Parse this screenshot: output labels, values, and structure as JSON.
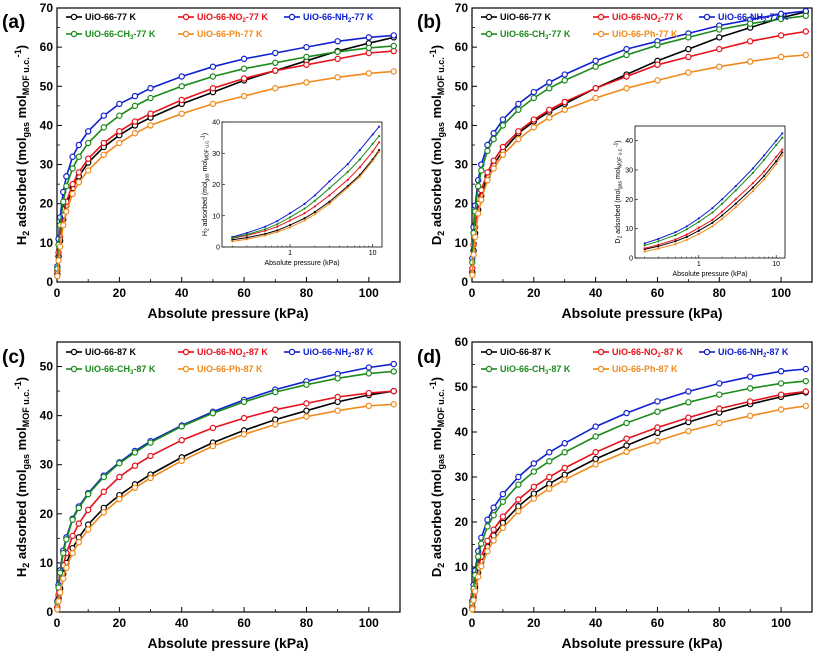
{
  "figure": {
    "colors": {
      "UiO-66": "#000000",
      "UiO-66-NO2": "#e8101a",
      "UiO-66-NH2": "#1020d0",
      "UiO-66-CH3": "#1a8a1a",
      "UiO-66-Ph": "#f08a1a"
    }
  },
  "chart_data": [
    {
      "type": "line",
      "panel_label": "(a)",
      "xlabel": "Absolute pressure (kPa)",
      "ylabel": {
        "prefix": "H",
        "sub1": "2",
        "mid": " adsorbed (mol",
        "sub2": "gas",
        "mid2": " mol",
        "sub3": "MOF u.c.",
        "sup": "-1",
        "suffix": ")"
      },
      "xlim": [
        0,
        110
      ],
      "ylim": [
        0,
        70
      ],
      "xticks": [
        "0",
        "20",
        "40",
        "60",
        "80",
        "100"
      ],
      "yticks": [
        "0",
        "10",
        "20",
        "30",
        "40",
        "50",
        "60",
        "70"
      ],
      "x": [
        0.1,
        0.5,
        1,
        2,
        3,
        5,
        7,
        10,
        15,
        20,
        25,
        30,
        40,
        50,
        60,
        70,
        80,
        90,
        100,
        108
      ],
      "series": [
        {
          "name": "UiO-66-77 K",
          "base": "UiO-66",
          "temp": "-77 K",
          "values": [
            2.0,
            6.5,
            10.5,
            16.0,
            19.5,
            24.0,
            27.0,
            30.5,
            34.5,
            37.5,
            40.0,
            42.0,
            45.5,
            48.5,
            51.5,
            54.0,
            56.5,
            59.0,
            61.0,
            62.5
          ]
        },
        {
          "name": "UiO-66-NO2-77 K",
          "base": "UiO-66-NO",
          "sub": "2",
          "temp": "-77 K",
          "values": [
            2.8,
            7.5,
            11.5,
            17.0,
            20.5,
            25.0,
            28.0,
            31.5,
            35.5,
            38.5,
            41.0,
            43.0,
            46.5,
            49.5,
            52.0,
            54.0,
            55.5,
            57.0,
            58.5,
            59.0
          ]
        },
        {
          "name": "UiO-66-NH2-77 K",
          "base": "UiO-66-NH",
          "sub": "2",
          "temp": "-77 K",
          "values": [
            4.0,
            11.0,
            16.5,
            23.0,
            27.0,
            32.0,
            35.0,
            38.5,
            42.5,
            45.5,
            47.5,
            49.5,
            52.5,
            55.0,
            57.0,
            58.5,
            60.0,
            61.5,
            62.5,
            63.0
          ]
        },
        {
          "name": "UiO-66-CH3-77 K",
          "base": "UiO-66-CH",
          "sub": "3",
          "temp": "-77 K",
          "values": [
            3.4,
            9.5,
            14.5,
            20.5,
            24.5,
            29.0,
            32.0,
            35.5,
            39.5,
            42.5,
            45.0,
            47.0,
            50.0,
            52.5,
            54.5,
            56.0,
            57.5,
            58.8,
            59.8,
            60.3
          ]
        },
        {
          "name": "UiO-66-Ph-77 K",
          "base": "UiO-66-Ph",
          "temp": "-77 K",
          "values": [
            1.5,
            5.5,
            9.0,
            14.5,
            18.0,
            22.5,
            25.5,
            28.5,
            32.5,
            35.5,
            38.0,
            40.0,
            43.0,
            45.5,
            47.5,
            49.5,
            51.0,
            52.3,
            53.3,
            53.8
          ]
        }
      ],
      "inset": {
        "xlabel": "Absolute pressure (kPa)",
        "ylabel": "H2 adsorbed (molgas molMOF u.c.-1)",
        "ylabel_parts": {
          "prefix": "H",
          "sub1": "2",
          "mid": " adsorbed (mol",
          "sub2": "gas",
          "mid2": " mol",
          "sub3": "MOF u.c.",
          "sup": "-1",
          "suffix": ")"
        },
        "xscale": "log",
        "xlim": [
          0.15,
          13
        ],
        "ylim": [
          0,
          40
        ],
        "xticks": [
          {
            "value": 1,
            "label": "1"
          },
          {
            "value": 10,
            "label": "10"
          }
        ],
        "yticks": [
          "0",
          "10",
          "20",
          "30",
          "40"
        ],
        "x": [
          0.2,
          0.3,
          0.5,
          0.7,
          1,
          1.5,
          2,
          3,
          5,
          7,
          10,
          12
        ],
        "series": [
          {
            "name": "UiO-66-77 K",
            "values": [
              2.3,
              3.0,
              4.2,
              5.3,
              7.0,
              9.2,
              11.2,
              14.5,
              19.5,
              23.0,
              28.0,
              31.0
            ]
          },
          {
            "name": "UiO-66-NO2-77 K",
            "values": [
              2.8,
              3.7,
              5.2,
              6.5,
              8.5,
              10.8,
              13.0,
              16.5,
              21.5,
              25.5,
              30.5,
              33.5
            ]
          },
          {
            "name": "UiO-66-NH2-77 K",
            "values": [
              3.2,
              4.5,
              6.5,
              8.3,
              10.8,
              13.8,
              16.5,
              21.0,
              26.5,
              31.0,
              36.0,
              38.5
            ]
          },
          {
            "name": "UiO-66-CH3-77 K",
            "values": [
              2.9,
              4.0,
              5.7,
              7.3,
              9.5,
              12.3,
              14.8,
              18.8,
              24.0,
              28.0,
              33.0,
              35.5
            ]
          },
          {
            "name": "UiO-66-Ph-77 K",
            "values": [
              1.8,
              2.5,
              3.7,
              4.8,
              6.3,
              8.5,
              10.5,
              13.8,
              19.0,
              22.5,
              27.5,
              30.5
            ]
          }
        ]
      }
    },
    {
      "type": "line",
      "panel_label": "(b)",
      "xlabel": "Absolute pressure (kPa)",
      "ylabel": {
        "prefix": "D",
        "sub1": "2",
        "mid": " adsorbed (mol",
        "sub2": "gas",
        "mid2": " mol",
        "sub3": "MOF u.c.",
        "sup": "-1",
        "suffix": ")"
      },
      "xlim": [
        0,
        110
      ],
      "ylim": [
        0,
        70
      ],
      "xticks": [
        "0",
        "20",
        "40",
        "60",
        "80",
        "100"
      ],
      "yticks": [
        "0",
        "10",
        "20",
        "30",
        "40",
        "50",
        "60",
        "70"
      ],
      "x": [
        0.1,
        0.5,
        1,
        2,
        3,
        5,
        7,
        10,
        15,
        20,
        25,
        30,
        40,
        50,
        60,
        70,
        80,
        90,
        100,
        108
      ],
      "series": [
        {
          "name": "UiO-66-77 K",
          "base": "UiO-66",
          "temp": "-77 K",
          "values": [
            2.5,
            8.0,
            12.5,
            18.5,
            22.0,
            27.0,
            30.0,
            33.5,
            38.0,
            41.0,
            43.5,
            45.5,
            49.5,
            53.0,
            56.5,
            59.5,
            62.5,
            65.0,
            67.5,
            69.0
          ]
        },
        {
          "name": "UiO-66-NO2-77 K",
          "base": "UiO-66-NO",
          "sub": "2",
          "temp": "-77 K",
          "values": [
            3.5,
            9.5,
            14.0,
            20.0,
            23.5,
            28.0,
            31.0,
            34.5,
            38.5,
            41.5,
            44.0,
            46.0,
            49.5,
            52.5,
            55.5,
            57.5,
            59.5,
            61.5,
            63.0,
            64.0
          ]
        },
        {
          "name": "UiO-66-NH2-77 K",
          "base": "UiO-66-NH",
          "sub": "2",
          "temp": "-77 K",
          "values": [
            6.0,
            14.0,
            19.5,
            26.0,
            30.0,
            35.0,
            38.0,
            41.5,
            45.5,
            48.5,
            51.0,
            53.0,
            56.5,
            59.5,
            61.5,
            63.5,
            65.5,
            67.0,
            68.5,
            69.2
          ]
        },
        {
          "name": "UiO-66-CH3-77 K",
          "base": "UiO-66-CH",
          "sub": "3",
          "temp": "-77 K",
          "values": [
            5.0,
            12.5,
            18.0,
            24.5,
            28.5,
            33.5,
            36.5,
            40.0,
            44.0,
            47.0,
            49.5,
            51.5,
            55.0,
            58.0,
            60.5,
            62.5,
            64.5,
            66.0,
            67.2,
            68.0
          ]
        },
        {
          "name": "UiO-66-Ph-77 K",
          "base": "UiO-66-Ph",
          "temp": "-77 K",
          "values": [
            1.8,
            7.0,
            11.5,
            17.5,
            21.0,
            26.0,
            29.0,
            32.5,
            36.5,
            39.5,
            42.0,
            44.0,
            47.0,
            49.5,
            51.5,
            53.5,
            55.0,
            56.3,
            57.5,
            58.0
          ]
        }
      ],
      "inset": {
        "xlabel": "Absolute pressure (kPa)",
        "ylabel": "D2 adsorbed (molgas molMOF u.c.-1)",
        "ylabel_parts": {
          "prefix": "D",
          "sub1": "2",
          "mid": " adsorbed (mol",
          "sub2": "gas",
          "mid2": " mol",
          "sub3": "MOF u.c.",
          "sup": "-1",
          "suffix": ")"
        },
        "xscale": "log",
        "xlim": [
          0.15,
          13
        ],
        "ylim": [
          0,
          45
        ],
        "xticks": [
          {
            "value": 1,
            "label": "1"
          },
          {
            "value": 10,
            "label": "10"
          }
        ],
        "yticks": [
          "0",
          "10",
          "20",
          "30",
          "40"
        ],
        "x": [
          0.2,
          0.3,
          0.5,
          0.7,
          1,
          1.5,
          2,
          3,
          5,
          7,
          10,
          12
        ],
        "series": [
          {
            "name": "UiO-66-77 K",
            "values": [
              3.0,
              4.0,
              5.7,
              7.2,
              9.3,
              12.0,
              14.5,
              18.5,
              24.0,
              28.0,
              33.0,
              36.0
            ]
          },
          {
            "name": "UiO-66-NO2-77 K",
            "values": [
              3.3,
              4.5,
              6.3,
              8.0,
              10.3,
              13.0,
              15.8,
              20.0,
              25.5,
              29.5,
              34.5,
              37.0
            ]
          },
          {
            "name": "UiO-66-NH2-77 K",
            "values": [
              5.0,
              6.5,
              8.8,
              10.8,
              13.5,
              17.0,
              20.0,
              24.5,
              30.5,
              35.0,
              40.0,
              42.5
            ]
          },
          {
            "name": "UiO-66-CH3-77 K",
            "values": [
              4.3,
              5.7,
              7.8,
              9.8,
              12.3,
              15.5,
              18.5,
              23.0,
              29.0,
              33.5,
              38.5,
              41.0
            ]
          },
          {
            "name": "UiO-66-Ph-77 K",
            "values": [
              2.2,
              3.2,
              4.7,
              6.2,
              8.2,
              10.8,
              13.3,
              17.3,
              22.8,
              26.8,
              32.0,
              35.0
            ]
          }
        ]
      }
    },
    {
      "type": "line",
      "panel_label": "(c)",
      "xlabel": "Absolute pressure (kPa)",
      "ylabel": {
        "prefix": "H",
        "sub1": "2",
        "mid": " adsorbed (mol",
        "sub2": "gas",
        "mid2": " mol",
        "sub3": "MOF u.c.",
        "sup": "-1",
        "suffix": ")"
      },
      "xlim": [
        0,
        110
      ],
      "ylim": [
        0,
        55
      ],
      "xticks": [
        "0",
        "20",
        "40",
        "60",
        "80",
        "100"
      ],
      "yticks": [
        "0",
        "10",
        "20",
        "30",
        "40",
        "50"
      ],
      "x": [
        0.1,
        0.5,
        1,
        2,
        3,
        5,
        7,
        10,
        15,
        20,
        25,
        30,
        40,
        50,
        60,
        70,
        80,
        90,
        100,
        108
      ],
      "series": [
        {
          "name": "UiO-66-87 K",
          "base": "UiO-66",
          "temp": "-87 K",
          "values": [
            0.8,
            2.8,
            4.8,
            7.8,
            10.0,
            13.0,
            15.2,
            17.8,
            21.2,
            23.8,
            26.0,
            28.0,
            31.5,
            34.5,
            37.0,
            39.2,
            41.0,
            42.8,
            44.2,
            45.0
          ]
        },
        {
          "name": "UiO-66-NO2-87 K",
          "base": "UiO-66-NO",
          "sub": "2",
          "temp": "-87 K",
          "values": [
            1.0,
            3.5,
            6.0,
            9.5,
            12.0,
            15.5,
            18.0,
            20.8,
            24.5,
            27.5,
            29.8,
            31.8,
            35.0,
            37.5,
            39.5,
            41.2,
            42.5,
            43.8,
            44.6,
            45.0
          ]
        },
        {
          "name": "UiO-66-NH2-87 K",
          "base": "UiO-66-NH",
          "sub": "2",
          "temp": "-87 K",
          "values": [
            2.2,
            5.5,
            8.5,
            12.5,
            15.2,
            19.0,
            21.5,
            24.2,
            27.8,
            30.5,
            32.8,
            34.8,
            38.0,
            40.8,
            43.2,
            45.3,
            47.0,
            48.5,
            49.8,
            50.5
          ]
        },
        {
          "name": "UiO-66-CH3-87 K",
          "base": "UiO-66-CH",
          "sub": "3",
          "temp": "-87 K",
          "values": [
            2.0,
            5.0,
            8.0,
            12.0,
            14.8,
            18.8,
            21.2,
            24.0,
            27.5,
            30.3,
            32.5,
            34.5,
            37.8,
            40.5,
            42.8,
            44.8,
            46.3,
            47.6,
            48.6,
            49.0
          ]
        },
        {
          "name": "UiO-66-Ph-87 K",
          "base": "UiO-66-Ph",
          "temp": "-87 K",
          "values": [
            0.5,
            2.2,
            4.0,
            6.8,
            9.0,
            12.0,
            14.2,
            16.8,
            20.3,
            23.0,
            25.3,
            27.3,
            30.8,
            33.8,
            36.2,
            38.2,
            39.8,
            41.0,
            42.0,
            42.3
          ]
        }
      ]
    },
    {
      "type": "line",
      "panel_label": "(d)",
      "xlabel": "Absolute pressure (kPa)",
      "ylabel": {
        "prefix": "D",
        "sub1": "2",
        "mid": " adsorbed (mol",
        "sub2": "gas",
        "mid2": " mol",
        "sub3": "MOF u.c.",
        "sup": "-1",
        "suffix": ")"
      },
      "xlim": [
        0,
        110
      ],
      "ylim": [
        0,
        60
      ],
      "xticks": [
        "0",
        "20",
        "40",
        "60",
        "80",
        "100"
      ],
      "yticks": [
        "0",
        "10",
        "20",
        "30",
        "40",
        "50",
        "60"
      ],
      "x": [
        0.1,
        0.5,
        1,
        2,
        3,
        5,
        7,
        10,
        15,
        20,
        25,
        30,
        40,
        50,
        60,
        70,
        80,
        90,
        100,
        108
      ],
      "series": [
        {
          "name": "UiO-66-87 K",
          "base": "UiO-66",
          "temp": "-87 K",
          "values": [
            1.0,
            3.2,
            5.5,
            8.8,
            11.2,
            14.5,
            17.0,
            19.8,
            23.5,
            26.3,
            28.5,
            30.5,
            34.0,
            37.0,
            39.8,
            42.2,
            44.3,
            46.2,
            47.8,
            48.8
          ]
        },
        {
          "name": "UiO-66-NO2-87 K",
          "base": "UiO-66-NO",
          "sub": "2",
          "temp": "-87 K",
          "values": [
            1.2,
            3.8,
            6.2,
            9.8,
            12.3,
            15.8,
            18.3,
            21.2,
            25.0,
            27.8,
            30.0,
            32.0,
            35.5,
            38.5,
            41.0,
            43.2,
            45.2,
            46.8,
            48.3,
            49.0
          ]
        },
        {
          "name": "UiO-66-NH2-87 K",
          "base": "UiO-66-NH",
          "sub": "2",
          "temp": "-87 K",
          "values": [
            2.5,
            6.0,
            9.2,
            13.5,
            16.5,
            20.5,
            23.2,
            26.2,
            30.0,
            33.0,
            35.5,
            37.5,
            41.2,
            44.2,
            46.8,
            49.0,
            50.8,
            52.3,
            53.5,
            54.0
          ]
        },
        {
          "name": "UiO-66-CH3-87 K",
          "base": "UiO-66-CH",
          "sub": "3",
          "temp": "-87 K",
          "values": [
            2.0,
            5.2,
            8.2,
            12.3,
            15.2,
            19.0,
            21.5,
            24.5,
            28.3,
            31.2,
            33.5,
            35.5,
            39.0,
            42.0,
            44.5,
            46.6,
            48.3,
            49.7,
            50.8,
            51.3
          ]
        },
        {
          "name": "UiO-66-Ph-87 K",
          "base": "UiO-66-Ph",
          "temp": "-87 K",
          "values": [
            0.6,
            2.6,
            4.6,
            7.8,
            10.2,
            13.5,
            15.9,
            18.7,
            22.4,
            25.2,
            27.4,
            29.4,
            32.8,
            35.6,
            38.0,
            40.2,
            42.0,
            43.6,
            45.0,
            45.8
          ]
        }
      ]
    }
  ]
}
